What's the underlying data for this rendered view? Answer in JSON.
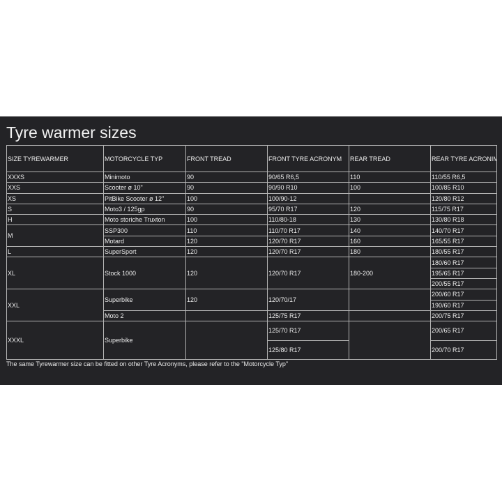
{
  "title": "Tyre warmer sizes",
  "headers": [
    "SIZE TYREWARMER",
    "MOTORCYCLE TYP",
    "FRONT TREAD",
    "FRONT TYRE ACRONYM",
    "REAR TREAD",
    "REAR TYRE ACRONIM"
  ],
  "rows": {
    "xxxs": [
      "XXXS",
      "Minimoto",
      "90",
      "90/65 R6,5",
      "110",
      "110/55 R6,5"
    ],
    "xxs": [
      "XXS",
      "Scooter ø 10\"",
      "90",
      "90/90 R10",
      "100",
      "100/85 R10"
    ],
    "xs": [
      "XS",
      "PitBike Scooter ø 12\"",
      "100",
      "100/90-12",
      "",
      "120/80 R12"
    ],
    "s": [
      "S",
      "Moto3 / 125gp",
      "90",
      "95/70 R17",
      "120",
      "115/75 R17"
    ],
    "h": [
      "H",
      "Moto storiche Truxton",
      "100",
      "110/80-18",
      "130",
      "130/80 R18"
    ],
    "m": {
      "size": "M",
      "items": [
        [
          "SSP300",
          "110",
          "110/70 R17",
          "140",
          "140/70 R17"
        ],
        [
          "Motard",
          "120",
          "120/70 R17",
          "160",
          "165/55 R17"
        ]
      ]
    },
    "l": [
      "L",
      "SuperSport",
      "120",
      "120/70 R17",
      "180",
      "180/55 R17"
    ],
    "xl": {
      "size": "XL",
      "moto": "Stock 1000",
      "front": "120",
      "acronym": "120/70 R17",
      "rear": "180-200",
      "rear_acronyms": [
        "180/60 R17",
        "195/65 R17",
        "200/55 R17"
      ]
    },
    "xxl": {
      "size": "XXL",
      "superbike": {
        "moto": "Superbike",
        "front": "120",
        "acronym": "120/70/17",
        "rear": "",
        "rear_acronyms": [
          "200/60 R17",
          "190/60 R17"
        ]
      },
      "moto2": {
        "moto": "Moto 2",
        "front": "",
        "acronym": "125/75 R17",
        "rear": "",
        "rear_acronym": "200/75 R17"
      }
    },
    "xxxl": {
      "size": "XXXL",
      "moto": "Superbike",
      "front": "",
      "acronyms": [
        "125/70 R17",
        "125/80 R17"
      ],
      "rear": "",
      "rear_acronyms": [
        "200/65 R17",
        "200/70 R17"
      ]
    }
  },
  "note": "The same Tyrewarmer size can be fitted on other Tyre Acronyms, please refer to the \"Motorcycle Typ\""
}
